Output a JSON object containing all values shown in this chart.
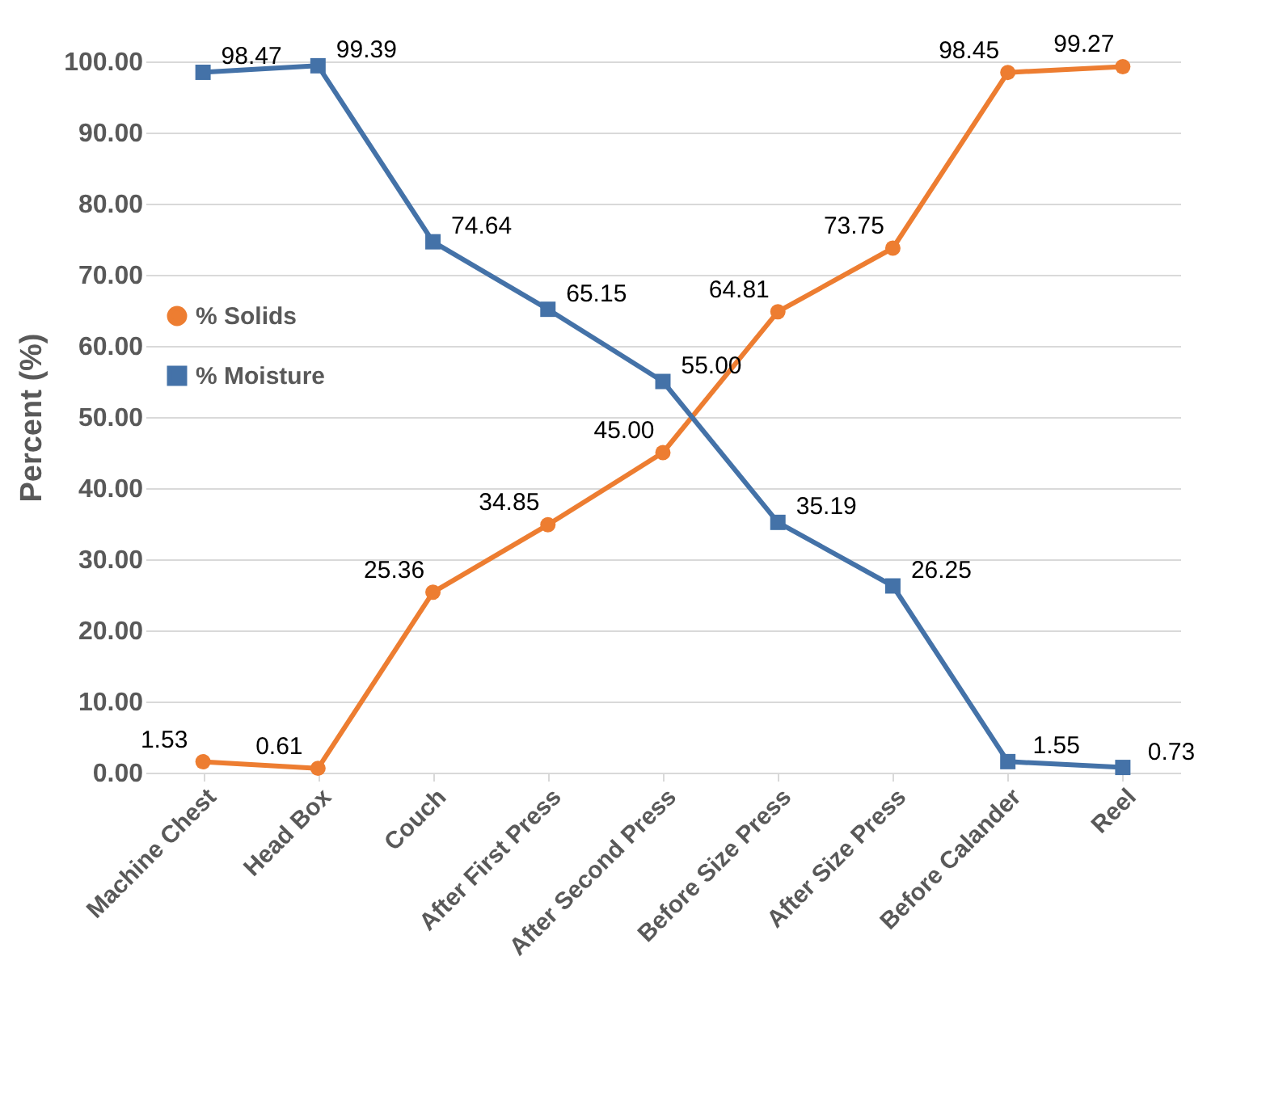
{
  "chart_data": {
    "type": "line",
    "ylabel": "Percent (%)",
    "categories": [
      "Machine Chest",
      "Head Box",
      "Couch",
      "After First Press",
      "After Second Press",
      "Before Size Press",
      "After Size Press",
      "Before Calander",
      "Reel"
    ],
    "series": [
      {
        "name": "% Solids",
        "color": "#ed7d31",
        "marker": "circle",
        "values": [
          1.53,
          0.61,
          25.36,
          34.85,
          45.0,
          64.81,
          73.75,
          98.45,
          99.27
        ],
        "value_labels": [
          "1.53",
          "0.61",
          "25.36",
          "34.85",
          "45.00",
          "64.81",
          "73.75",
          "98.45",
          "99.27"
        ]
      },
      {
        "name": "% Moisture",
        "color": "#4472a8",
        "marker": "square",
        "values": [
          98.47,
          99.39,
          74.64,
          65.15,
          55.0,
          35.19,
          26.25,
          1.55,
          0.73
        ],
        "value_labels": [
          "98.47",
          "99.39",
          "74.64",
          "65.15",
          "55.00",
          "35.19",
          "26.25",
          "1.55",
          "0.73"
        ]
      }
    ],
    "ylim": [
      0,
      100
    ],
    "yticks": [
      {
        "value": 0,
        "label": "0.00"
      },
      {
        "value": 10,
        "label": "10.00"
      },
      {
        "value": 20,
        "label": "20.00"
      },
      {
        "value": 30,
        "label": "30.00"
      },
      {
        "value": 40,
        "label": "40.00"
      },
      {
        "value": 50,
        "label": "50.00"
      },
      {
        "value": 60,
        "label": "60.00"
      },
      {
        "value": 70,
        "label": "70.00"
      },
      {
        "value": 80,
        "label": "80.00"
      },
      {
        "value": 90,
        "label": "90.00"
      },
      {
        "value": 100,
        "label": "100.00"
      }
    ],
    "grid": "y",
    "legend": "left",
    "line_style": "solid"
  }
}
